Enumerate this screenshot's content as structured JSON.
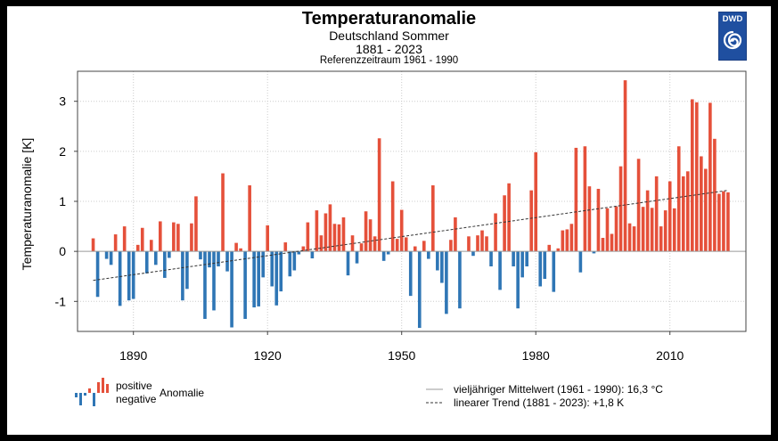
{
  "header": {
    "title": "Temperaturanomalie",
    "region": "Deutschland Sommer",
    "period": "1881 - 2023",
    "reference": "Referenzzeitraum 1961 - 1990"
  },
  "logo": {
    "text": "DWD"
  },
  "legend": {
    "positive": "positive",
    "negative": "negative",
    "anomaly": "Anomalie",
    "mean": "vieljähriger Mittelwert (1961 - 1990): 16,3 °C",
    "trend": "linearer Trend (1881 - 2023): +1,8 K"
  },
  "colors": {
    "positive": "#e5503a",
    "negative": "#2f76b5"
  },
  "chart_data": {
    "type": "bar",
    "title": "Temperaturanomalie",
    "ylabel": "Temperaturanomalie [K]",
    "xlabel": "",
    "x_start": 1881,
    "x_end": 2023,
    "xlim": [
      1877.5,
      2027
    ],
    "ylim": [
      -1.6,
      3.6
    ],
    "x_ticks": [
      1890,
      1920,
      1950,
      1980,
      2010
    ],
    "y_ticks": [
      -1,
      0,
      1,
      2,
      3
    ],
    "grid": true,
    "values": [
      0.26,
      -0.91,
      0.0,
      -0.15,
      -0.27,
      0.34,
      -1.09,
      0.5,
      -0.98,
      -0.95,
      0.13,
      0.47,
      -0.44,
      0.23,
      -0.27,
      0.6,
      -0.53,
      -0.13,
      0.58,
      0.55,
      -0.98,
      -0.75,
      0.56,
      1.1,
      -0.16,
      -1.35,
      -0.32,
      -1.18,
      -0.3,
      1.56,
      -0.4,
      -1.52,
      0.17,
      0.06,
      -1.35,
      1.32,
      -1.12,
      -1.1,
      -0.52,
      0.52,
      -0.7,
      -1.08,
      -0.8,
      0.18,
      -0.5,
      -0.38,
      -0.06,
      0.1,
      0.58,
      -0.14,
      0.82,
      0.32,
      0.76,
      0.94,
      0.55,
      0.54,
      0.68,
      -0.48,
      0.32,
      -0.24,
      0.16,
      0.8,
      0.64,
      0.3,
      2.26,
      -0.19,
      -0.06,
      1.4,
      0.25,
      0.83,
      0.28,
      -0.89,
      0.1,
      -1.53,
      0.21,
      -0.15,
      1.32,
      -0.38,
      -0.63,
      -1.25,
      0.23,
      0.68,
      -1.14,
      0.0,
      0.3,
      -0.09,
      0.32,
      0.42,
      0.3,
      -0.3,
      0.76,
      -0.77,
      1.12,
      1.36,
      -0.3,
      -1.14,
      -0.52,
      -0.3,
      1.22,
      1.98,
      -0.7,
      -0.55,
      0.13,
      -0.81,
      0.06,
      0.42,
      0.44,
      0.55,
      2.07,
      -0.42,
      2.1,
      1.3,
      -0.04,
      1.25,
      0.27,
      0.86,
      0.35,
      0.9,
      1.7,
      3.42,
      0.56,
      0.5,
      1.85,
      0.89,
      1.22,
      0.87,
      1.5,
      0.5,
      0.82,
      1.4,
      0.86,
      2.1,
      1.5,
      1.6,
      3.04,
      2.98,
      1.9,
      1.65,
      2.97,
      2.25,
      1.15,
      1.2,
      1.18
    ],
    "trend": {
      "x": [
        1881,
        2023
      ],
      "y": [
        -0.58,
        1.22
      ]
    },
    "mean_reference": "16,3 °C",
    "trend_label": "+1,8 K"
  }
}
